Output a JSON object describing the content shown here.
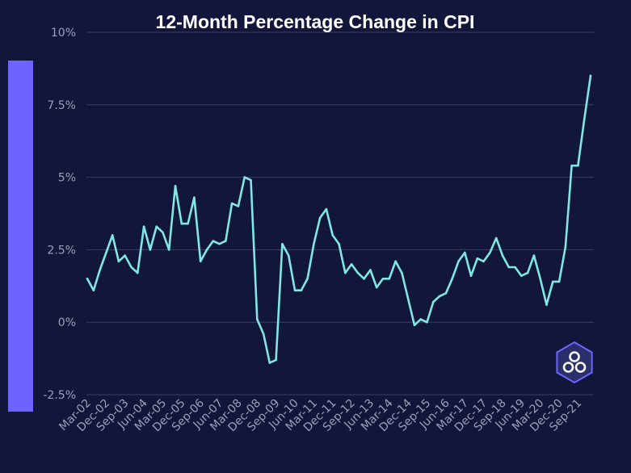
{
  "colors": {
    "background": "#12163a",
    "line": "#7fe8e2",
    "grid": "#3a3f68",
    "accent_bar": "#6e63ff",
    "tick_text": "#9aa0b8",
    "title_text": "#ffffff"
  },
  "logo": {
    "icon": "hexagon-cluster-logo-icon"
  },
  "chart_data": {
    "type": "line",
    "title": "12-Month Percentage Change in CPI",
    "xlabel": "",
    "ylabel": "",
    "ylim": [
      -2.5,
      10
    ],
    "yticks": [
      -2.5,
      0,
      2.5,
      5,
      7.5,
      10
    ],
    "ytick_labels": [
      "-2.5%",
      "0%",
      "2.5%",
      "5%",
      "7.5%",
      "10%"
    ],
    "grid": "horizontal",
    "legend": "none",
    "xticks": [
      "Mar-02",
      "Dec-02",
      "Sep-03",
      "Jun-04",
      "Mar-05",
      "Dec-05",
      "Sep-06",
      "Jun-07",
      "Mar-08",
      "Dec-08",
      "Sep-09",
      "Jun-10",
      "Mar-11",
      "Dec-11",
      "Sep-12",
      "Jun-13",
      "Mar-14",
      "Dec-14",
      "Sep-15",
      "Jun-16",
      "Mar-17",
      "Dec-17",
      "Sep-18",
      "Jun-19",
      "Mar-20",
      "Dec-20",
      "Sep-21"
    ],
    "series": [
      {
        "x": [
          "Mar-02",
          "Jun-02",
          "Sep-02",
          "Dec-02",
          "Mar-03",
          "Jun-03",
          "Sep-03",
          "Dec-03",
          "Mar-04",
          "Jun-04",
          "Sep-04",
          "Dec-04",
          "Mar-05",
          "Jun-05",
          "Sep-05",
          "Dec-05",
          "Mar-06",
          "Jun-06",
          "Sep-06",
          "Dec-06",
          "Mar-07",
          "Jun-07",
          "Sep-07",
          "Dec-07",
          "Mar-08",
          "Jun-08",
          "Sep-08",
          "Dec-08",
          "Mar-09",
          "Jun-09",
          "Sep-09",
          "Dec-09",
          "Mar-10",
          "Jun-10",
          "Sep-10",
          "Dec-10",
          "Mar-11",
          "Jun-11",
          "Sep-11",
          "Dec-11",
          "Mar-12",
          "Jun-12",
          "Sep-12",
          "Dec-12",
          "Mar-13",
          "Jun-13",
          "Sep-13",
          "Dec-13",
          "Mar-14",
          "Jun-14",
          "Sep-14",
          "Dec-14",
          "Mar-15",
          "Jun-15",
          "Sep-15",
          "Dec-15",
          "Mar-16",
          "Jun-16",
          "Sep-16",
          "Dec-16",
          "Mar-17",
          "Jun-17",
          "Sep-17",
          "Dec-17",
          "Mar-18",
          "Jun-18",
          "Sep-18",
          "Dec-18",
          "Mar-19",
          "Jun-19",
          "Sep-19",
          "Dec-19",
          "Mar-20",
          "Jun-20",
          "Sep-20",
          "Dec-20",
          "Mar-21",
          "Jun-21",
          "Sep-21",
          "Dec-21",
          "Mar-22"
        ],
        "values": [
          1.5,
          1.1,
          1.8,
          2.4,
          3.0,
          2.1,
          2.3,
          1.9,
          1.7,
          3.3,
          2.5,
          3.3,
          3.1,
          2.5,
          4.7,
          3.4,
          3.4,
          4.3,
          2.1,
          2.5,
          2.8,
          2.7,
          2.8,
          4.1,
          4.0,
          5.0,
          4.9,
          0.1,
          -0.4,
          -1.4,
          -1.3,
          2.7,
          2.3,
          1.1,
          1.1,
          1.5,
          2.7,
          3.6,
          3.9,
          3.0,
          2.7,
          1.7,
          2.0,
          1.7,
          1.5,
          1.8,
          1.2,
          1.5,
          1.5,
          2.1,
          1.7,
          0.8,
          -0.1,
          0.1,
          0.0,
          0.7,
          0.9,
          1.0,
          1.5,
          2.1,
          2.4,
          1.6,
          2.2,
          2.1,
          2.4,
          2.9,
          2.3,
          1.9,
          1.9,
          1.6,
          1.7,
          2.3,
          1.5,
          0.6,
          1.4,
          1.4,
          2.6,
          5.4,
          5.4,
          7.0,
          8.5
        ]
      }
    ]
  }
}
